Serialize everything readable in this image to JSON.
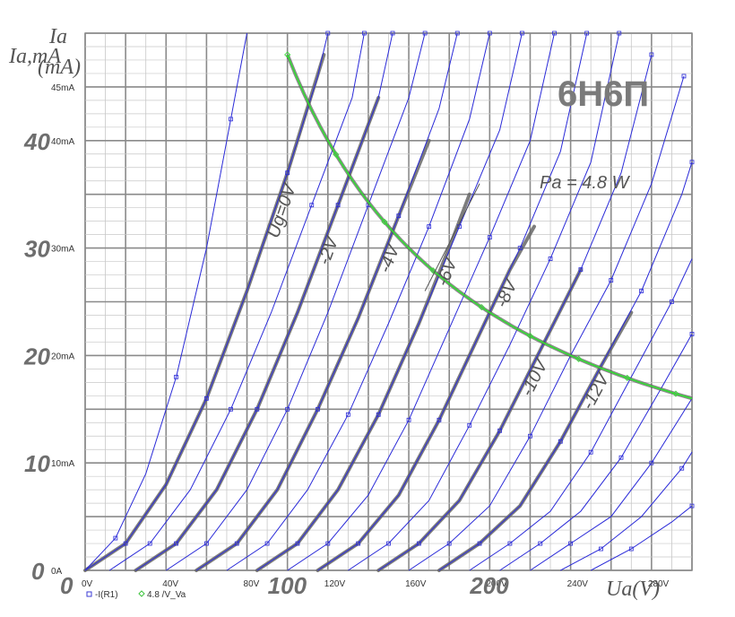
{
  "chart_data": {
    "type": "line",
    "title": "6Н6П",
    "xlabel": "Ua(V)",
    "ylabel_lines": [
      "Ia",
      "(mA)"
    ],
    "ylabel_handwritten": "Ia,mA",
    "xlim": [
      0,
      300
    ],
    "ylim": [
      0,
      50
    ],
    "grid": true,
    "x_tick_labels": [
      "0V",
      "40V",
      "80V",
      "120V",
      "160V",
      "200V",
      "240V",
      "280V"
    ],
    "x_tick_values": [
      0,
      40,
      80,
      120,
      160,
      200,
      240,
      280
    ],
    "y_tick_labels": [
      "0A",
      "10mA",
      "20mA",
      "30mA",
      "40mA",
      "45mA"
    ],
    "y_tick_values": [
      0,
      10,
      20,
      30,
      40,
      45
    ],
    "x_big_labels": [
      "0",
      "100",
      "200"
    ],
    "x_big_values": [
      0,
      100,
      200
    ],
    "y_big_labels": [
      "0",
      "10",
      "20",
      "30",
      "40"
    ],
    "y_big_values": [
      0,
      10,
      20,
      30,
      40
    ],
    "pa_label": "Pa = 4.8 W",
    "pa_watts": 4.8,
    "curve_labels": [
      {
        "text": "Ug=0V",
        "ug": 0
      },
      {
        "text": "-2V",
        "ug": -2
      },
      {
        "text": "-4V",
        "ug": -4
      },
      {
        "text": "-6V",
        "ug": -6
      },
      {
        "text": "-8V",
        "ug": -8
      },
      {
        "text": "-10V",
        "ug": -10
      },
      {
        "text": "-12V",
        "ug": -12
      }
    ],
    "measured_series": [
      {
        "ug": 0,
        "points": [
          [
            0,
            0
          ],
          [
            20,
            2.5
          ],
          [
            40,
            8
          ],
          [
            60,
            16
          ],
          [
            80,
            26
          ],
          [
            100,
            37
          ],
          [
            118,
            48
          ]
        ]
      },
      {
        "ug": -2,
        "points": [
          [
            25,
            0
          ],
          [
            45,
            2.5
          ],
          [
            65,
            7.5
          ],
          [
            85,
            15
          ],
          [
            105,
            24
          ],
          [
            125,
            34
          ],
          [
            145,
            44
          ]
        ]
      },
      {
        "ug": -4,
        "points": [
          [
            55,
            0
          ],
          [
            75,
            2.5
          ],
          [
            95,
            7.5
          ],
          [
            115,
            15
          ],
          [
            135,
            23.5
          ],
          [
            155,
            33
          ],
          [
            170,
            40
          ]
        ]
      },
      {
        "ug": -6,
        "points": [
          [
            85,
            0
          ],
          [
            105,
            2.5
          ],
          [
            125,
            7.5
          ],
          [
            145,
            14.5
          ],
          [
            165,
            23
          ],
          [
            182,
            31
          ],
          [
            190,
            35
          ]
        ]
      },
      {
        "ug": -8,
        "points": [
          [
            115,
            0
          ],
          [
            135,
            2.5
          ],
          [
            155,
            7
          ],
          [
            175,
            14
          ],
          [
            195,
            22
          ],
          [
            210,
            28
          ],
          [
            222,
            32
          ]
        ]
      },
      {
        "ug": -10,
        "points": [
          [
            145,
            0
          ],
          [
            165,
            2.5
          ],
          [
            185,
            6.5
          ],
          [
            205,
            13
          ],
          [
            225,
            20.5
          ],
          [
            245,
            28
          ]
        ]
      },
      {
        "ug": -12,
        "points": [
          [
            175,
            0
          ],
          [
            195,
            2.5
          ],
          [
            215,
            6
          ],
          [
            235,
            12
          ],
          [
            255,
            19
          ],
          [
            270,
            24
          ]
        ]
      }
    ],
    "model_series_note": "",
    "model_series": [
      {
        "ug": 1,
        "points": [
          [
            0,
            0
          ],
          [
            15,
            3
          ],
          [
            30,
            9
          ],
          [
            45,
            18
          ],
          [
            60,
            30
          ],
          [
            72,
            42
          ],
          [
            80,
            50
          ]
        ]
      },
      {
        "ug": 0,
        "points": [
          [
            0,
            0
          ],
          [
            20,
            2.5
          ],
          [
            40,
            8
          ],
          [
            60,
            16
          ],
          [
            80,
            26
          ],
          [
            100,
            37
          ],
          [
            115,
            46
          ],
          [
            120,
            50
          ]
        ]
      },
      {
        "ug": -1,
        "points": [
          [
            12,
            0
          ],
          [
            32,
            2.5
          ],
          [
            52,
            7.5
          ],
          [
            72,
            15
          ],
          [
            92,
            24
          ],
          [
            112,
            34
          ],
          [
            132,
            44
          ],
          [
            138,
            50
          ]
        ]
      },
      {
        "ug": -2,
        "points": [
          [
            25,
            0
          ],
          [
            45,
            2.5
          ],
          [
            65,
            7.5
          ],
          [
            85,
            15
          ],
          [
            105,
            24
          ],
          [
            125,
            34
          ],
          [
            145,
            44
          ],
          [
            152,
            50
          ]
        ]
      },
      {
        "ug": -3,
        "points": [
          [
            40,
            0
          ],
          [
            60,
            2.5
          ],
          [
            80,
            7.5
          ],
          [
            100,
            15
          ],
          [
            120,
            24
          ],
          [
            140,
            34
          ],
          [
            160,
            44
          ],
          [
            168,
            50
          ]
        ]
      },
      {
        "ug": -4,
        "points": [
          [
            55,
            0
          ],
          [
            75,
            2.5
          ],
          [
            95,
            7.5
          ],
          [
            115,
            15
          ],
          [
            135,
            23.5
          ],
          [
            155,
            33
          ],
          [
            175,
            43
          ],
          [
            184,
            50
          ]
        ]
      },
      {
        "ug": -5,
        "points": [
          [
            70,
            0
          ],
          [
            90,
            2.5
          ],
          [
            110,
            7.5
          ],
          [
            130,
            14.5
          ],
          [
            150,
            23
          ],
          [
            170,
            32
          ],
          [
            190,
            42
          ],
          [
            200,
            50
          ]
        ]
      },
      {
        "ug": -6,
        "points": [
          [
            85,
            0
          ],
          [
            105,
            2.5
          ],
          [
            125,
            7.5
          ],
          [
            145,
            14.5
          ],
          [
            165,
            23
          ],
          [
            185,
            32
          ],
          [
            205,
            41
          ],
          [
            216,
            50
          ]
        ]
      },
      {
        "ug": -7,
        "points": [
          [
            100,
            0
          ],
          [
            120,
            2.5
          ],
          [
            140,
            7
          ],
          [
            160,
            14
          ],
          [
            180,
            22.5
          ],
          [
            200,
            31
          ],
          [
            220,
            40
          ],
          [
            232,
            50
          ]
        ]
      },
      {
        "ug": -8,
        "points": [
          [
            115,
            0
          ],
          [
            135,
            2.5
          ],
          [
            155,
            7
          ],
          [
            175,
            14
          ],
          [
            195,
            22
          ],
          [
            215,
            30
          ],
          [
            235,
            39
          ],
          [
            248,
            50
          ]
        ]
      },
      {
        "ug": -9,
        "points": [
          [
            130,
            0
          ],
          [
            150,
            2.5
          ],
          [
            170,
            6.5
          ],
          [
            190,
            13.5
          ],
          [
            210,
            21
          ],
          [
            230,
            29
          ],
          [
            250,
            38
          ],
          [
            264,
            50
          ]
        ]
      },
      {
        "ug": -10,
        "points": [
          [
            145,
            0
          ],
          [
            165,
            2.5
          ],
          [
            185,
            6.5
          ],
          [
            205,
            13
          ],
          [
            225,
            20.5
          ],
          [
            245,
            28
          ],
          [
            265,
            37
          ],
          [
            280,
            48
          ]
        ]
      },
      {
        "ug": -11,
        "points": [
          [
            160,
            0
          ],
          [
            180,
            2.5
          ],
          [
            200,
            6
          ],
          [
            220,
            12.5
          ],
          [
            240,
            20
          ],
          [
            260,
            27
          ],
          [
            280,
            36
          ],
          [
            296,
            46
          ]
        ]
      },
      {
        "ug": -12,
        "points": [
          [
            175,
            0
          ],
          [
            195,
            2.5
          ],
          [
            215,
            6
          ],
          [
            235,
            12
          ],
          [
            255,
            19
          ],
          [
            275,
            26
          ],
          [
            295,
            35
          ],
          [
            300,
            38
          ]
        ]
      },
      {
        "ug": -13,
        "points": [
          [
            190,
            0
          ],
          [
            210,
            2.5
          ],
          [
            230,
            5.5
          ],
          [
            250,
            11
          ],
          [
            270,
            18
          ],
          [
            290,
            25
          ],
          [
            300,
            29
          ]
        ]
      },
      {
        "ug": -14,
        "points": [
          [
            205,
            0
          ],
          [
            225,
            2.5
          ],
          [
            245,
            5.5
          ],
          [
            265,
            10.5
          ],
          [
            285,
            17
          ],
          [
            300,
            22
          ]
        ]
      },
      {
        "ug": -15,
        "points": [
          [
            220,
            0
          ],
          [
            240,
            2.5
          ],
          [
            260,
            5
          ],
          [
            280,
            10
          ],
          [
            300,
            16
          ]
        ]
      },
      {
        "ug": -16,
        "points": [
          [
            235,
            0
          ],
          [
            255,
            2
          ],
          [
            275,
            5
          ],
          [
            295,
            9.5
          ],
          [
            300,
            11
          ]
        ]
      },
      {
        "ug": -17,
        "points": [
          [
            250,
            0
          ],
          [
            270,
            2
          ],
          [
            290,
            4.5
          ],
          [
            300,
            6
          ]
        ]
      }
    ],
    "legend": [
      {
        "marker": "square",
        "text": "-I(R1)",
        "color": "#3b3bd6"
      },
      {
        "marker": "diamond",
        "text": "4.8 /V_Va",
        "color": "#3ec43e"
      }
    ],
    "colors": {
      "model": "#2a2ad8",
      "measured": "#666666",
      "hyperbola": "#33dd33",
      "grid_light": "#c8c8c8",
      "grid_dark": "#8a8a8a"
    }
  }
}
